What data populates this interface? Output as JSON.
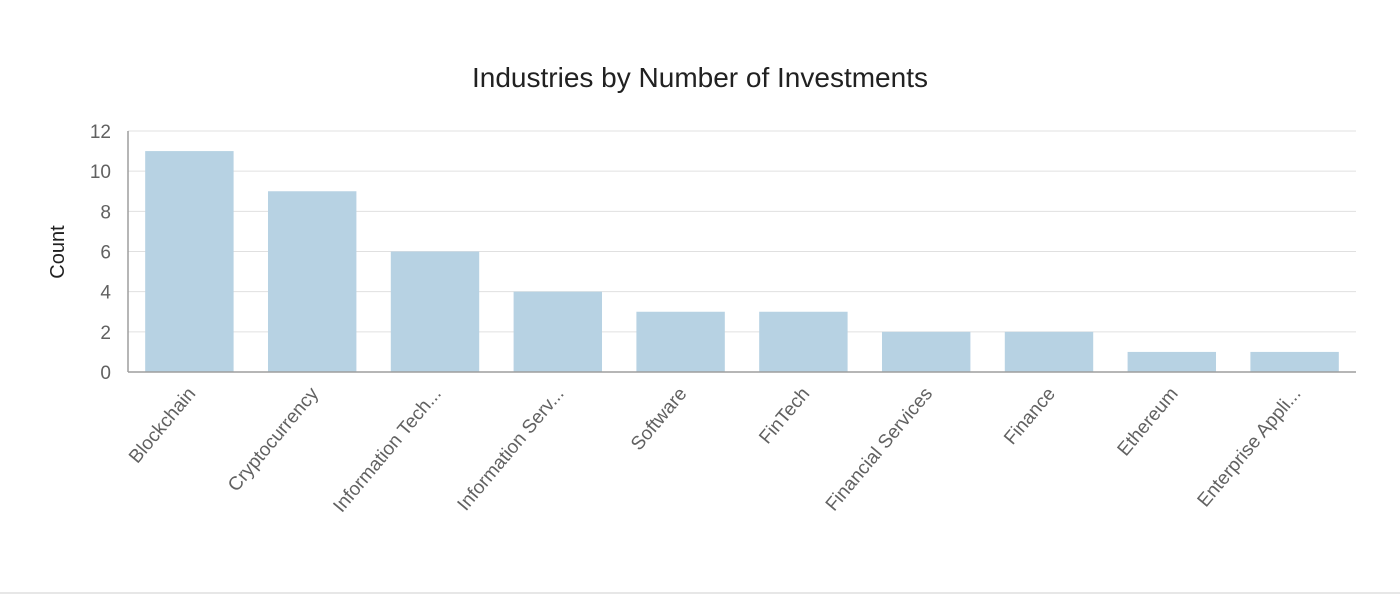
{
  "chart_data": {
    "type": "bar",
    "title": "Industries by Number of Investments",
    "xlabel": "",
    "ylabel": "Count",
    "ylim": [
      0,
      12
    ],
    "yticks": [
      0,
      2,
      4,
      6,
      8,
      10,
      12
    ],
    "grid": true,
    "categories": [
      "Blockchain",
      "Cryptocurrency",
      "Information Tech...",
      "Information Serv...",
      "Software",
      "FinTech",
      "Financial Services",
      "Finance",
      "Ethereum",
      "Enterprise Appli..."
    ],
    "values": [
      11,
      9,
      6,
      4,
      3,
      3,
      2,
      2,
      1,
      1
    ],
    "bar_color": "#b7d2e3"
  }
}
